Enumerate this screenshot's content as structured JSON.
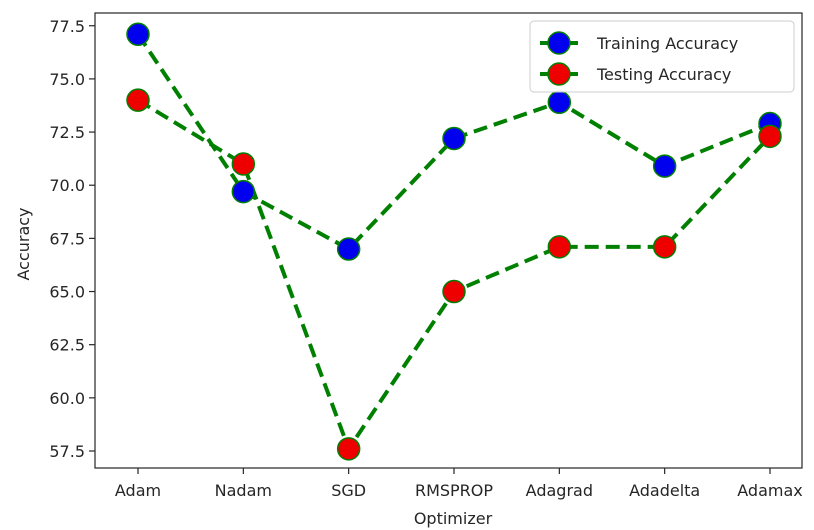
{
  "chart_data": {
    "type": "line",
    "categories": [
      "Adam",
      "Nadam",
      "SGD",
      "RMSPROP",
      "Adagrad",
      "Adadelta",
      "Adamax"
    ],
    "series": [
      {
        "name": "Training Accuracy",
        "values": [
          77.1,
          69.7,
          67.0,
          72.2,
          73.9,
          70.9,
          72.9
        ],
        "marker_color": "#0000ee"
      },
      {
        "name": "Testing Accuracy",
        "values": [
          74.0,
          71.0,
          57.6,
          65.0,
          67.1,
          67.1,
          72.3
        ],
        "marker_color": "#ee0000"
      }
    ],
    "line_color": "#008000",
    "line_style": "dashed",
    "xlabel": "Optimizer",
    "ylabel": "Accuracy",
    "ylim": [
      56.7,
      78.1
    ],
    "yticks": [
      "57.5",
      "60.0",
      "62.5",
      "65.0",
      "67.5",
      "70.0",
      "72.5",
      "75.0",
      "77.5"
    ],
    "legend_position": "top-right",
    "grid": false
  }
}
